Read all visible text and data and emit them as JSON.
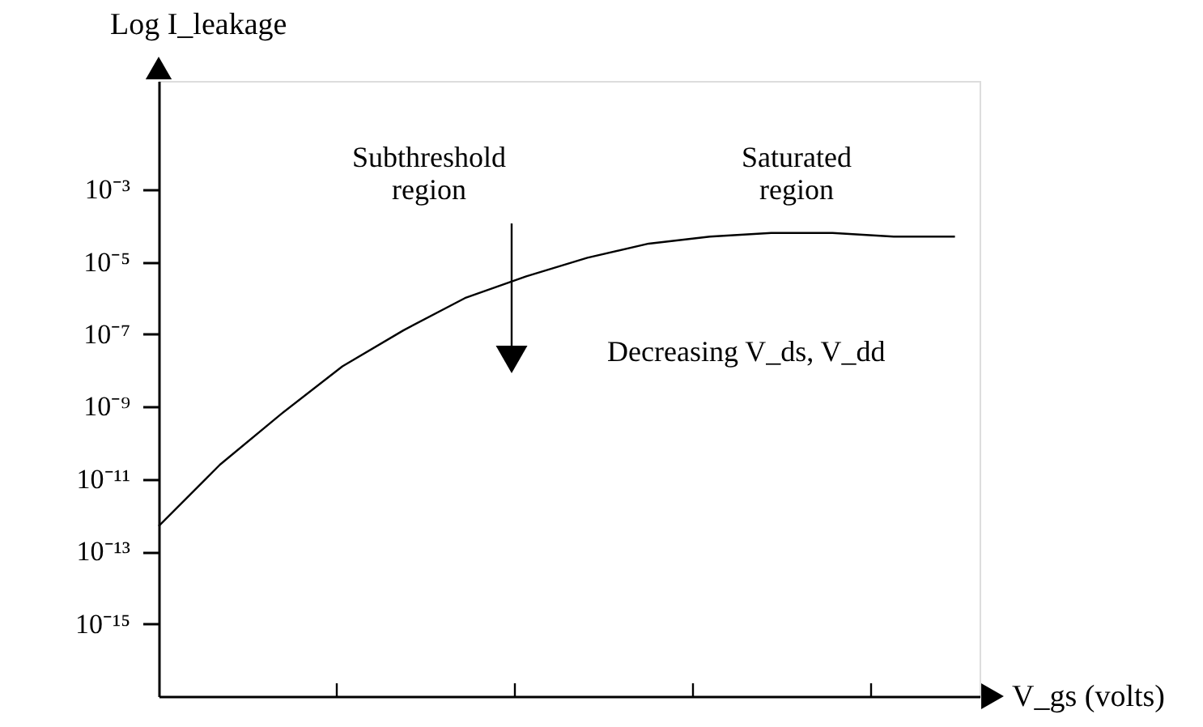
{
  "chart_data": {
    "type": "line",
    "ylabel": "Log I_leakage",
    "xlabel": "V_gs (volts)",
    "annotations": [
      "Subthreshold\nregion",
      "Saturated\nregion",
      "Decreasing    V_ds, V_dd"
    ],
    "categories": [
      null,
      null,
      null,
      null,
      null,
      null,
      null,
      null,
      null,
      null,
      null,
      null,
      null,
      null
    ],
    "series": [
      {
        "color": "#000000",
        "values": [
          5e-13,
          2.5e-11,
          6.3e-10,
          1.3e-08,
          1.3e-07,
          1e-06,
          4e-06,
          1.3e-05,
          3.2e-05,
          5e-05,
          6.3e-05,
          6.3e-05,
          5e-05,
          5e-05
        ]
      }
    ],
    "log": "y",
    "ylim": [
      1e-17,
      1
    ],
    "yticks": [
      {
        "value": 0.001,
        "label": "10⁻³"
      },
      {
        "value": 1e-05,
        "label": "10⁻⁵"
      },
      {
        "value": 1e-07,
        "label": "10⁻⁷"
      },
      {
        "value": 1e-09,
        "label": "10⁻⁹"
      },
      {
        "value": 1e-11,
        "label": "10⁻¹¹"
      },
      {
        "value": 1e-13,
        "label": "10⁻¹³"
      },
      {
        "value": 1e-15,
        "label": "10⁻¹⁵"
      }
    ],
    "tick_labels": "y",
    "grid": false,
    "marker": "none",
    "line_style": "solid"
  }
}
